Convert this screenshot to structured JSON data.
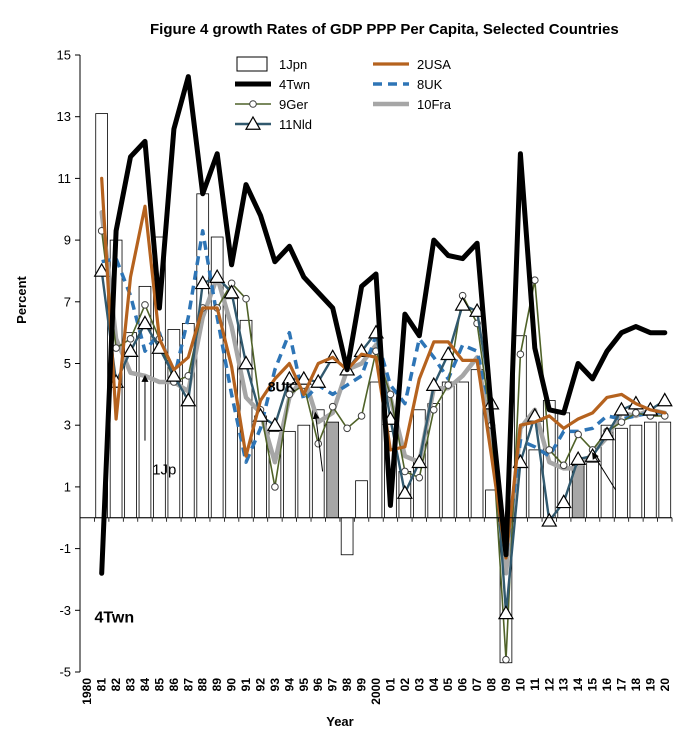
{
  "chart_data": {
    "type": "bar+line",
    "title": "Figure 4  growth Rates of GDP PPP Per Capita, Selected Countries",
    "xlabel": "Year",
    "ylabel": "Percent",
    "ylim": [
      -5,
      15
    ],
    "yticks": [
      "-5",
      "-3",
      "-1",
      "1",
      "3",
      "5",
      "7",
      "9",
      "11",
      "13",
      "15"
    ],
    "grid": false,
    "legend_position": "top-left",
    "categories": [
      "1980",
      "81",
      "82",
      "83",
      "84",
      "85",
      "86",
      "87",
      "88",
      "89",
      "90",
      "91",
      "92",
      "93",
      "94",
      "95",
      "96",
      "97",
      "98",
      "99",
      "2000",
      "01",
      "02",
      "03",
      "04",
      "05",
      "06",
      "07",
      "08",
      "09",
      "10",
      "11",
      "12",
      "13",
      "14",
      "15",
      "16",
      "17",
      "18",
      "19",
      "20"
    ],
    "bars": {
      "name": "1Jpn",
      "values": [
        null,
        13.1,
        9.0,
        6.0,
        7.5,
        9.1,
        6.1,
        6.3,
        10.5,
        9.1,
        7.1,
        6.4,
        3.3,
        2.8,
        2.8,
        3.0,
        3.5,
        3.1,
        -1.2,
        1.2,
        4.4,
        2.8,
        1.5,
        3.5,
        3.7,
        4.4,
        4.4,
        4.8,
        0.9,
        -4.7,
        5.9,
        2.2,
        3.8,
        3.4,
        1.7,
        1.8,
        3.0,
        2.9,
        3.0,
        3.1,
        3.1
      ],
      "highlighted": [
        "97",
        "14"
      ],
      "colors": {
        "fill": "#ffffff",
        "stroke": "#000000",
        "highlight": "#a6a6a6"
      }
    },
    "series": [
      {
        "name": "2USA",
        "color": "#b5621e",
        "values": [
          null,
          11.0,
          3.2,
          7.8,
          10.1,
          5.8,
          4.8,
          5.2,
          6.8,
          6.8,
          4.9,
          2.0,
          3.8,
          4.5,
          5.0,
          4.0,
          5.0,
          5.2,
          4.8,
          5.3,
          5.2,
          2.2,
          2.3,
          4.5,
          5.7,
          5.7,
          5.1,
          5.1,
          2.0,
          -1.3,
          3.0,
          3.1,
          3.3,
          2.9,
          3.2,
          3.4,
          3.9,
          4.0,
          3.7,
          3.5,
          3.4
        ]
      },
      {
        "name": "4Twn",
        "color": "#000000",
        "values": [
          null,
          -1.8,
          9.3,
          11.7,
          12.2,
          6.8,
          12.6,
          14.3,
          10.5,
          11.8,
          8.2,
          10.8,
          9.8,
          8.3,
          8.8,
          7.8,
          7.3,
          6.8,
          4.8,
          7.5,
          7.9,
          0.4,
          6.6,
          5.9,
          9.0,
          8.5,
          8.4,
          8.9,
          3.4,
          -1.2,
          11.8,
          5.5,
          3.5,
          3.4,
          5.0,
          4.5,
          5.4,
          6.0,
          6.2,
          6.0,
          6.0
        ]
      },
      {
        "name": "8UK",
        "color": "#2e75b6",
        "values": [
          null,
          8.3,
          8.4,
          7.2,
          5.4,
          6.0,
          4.5,
          6.5,
          9.3,
          6.5,
          4.0,
          1.8,
          2.9,
          4.8,
          6.0,
          3.8,
          4.3,
          4.0,
          4.3,
          4.6,
          5.9,
          4.3,
          3.7,
          5.8,
          5.2,
          4.5,
          5.6,
          5.4,
          3.4,
          -1.3,
          2.5,
          2.3,
          2.0,
          2.8,
          2.8,
          2.9,
          3.3,
          3.2,
          3.3,
          3.4,
          3.4
        ]
      },
      {
        "name": "9Ger",
        "color": "#4f6228",
        "values": [
          null,
          9.3,
          5.5,
          5.8,
          6.9,
          5.8,
          4.4,
          4.6,
          6.8,
          6.8,
          7.6,
          7.1,
          3.5,
          1.0,
          4.0,
          4.3,
          2.4,
          3.6,
          2.9,
          3.3,
          5.4,
          4.0,
          1.5,
          1.3,
          3.5,
          4.3,
          7.2,
          6.3,
          3.0,
          -4.6,
          5.3,
          7.7,
          2.2,
          1.7,
          2.7,
          2.2,
          2.8,
          3.1,
          3.4,
          3.3,
          3.3
        ]
      },
      {
        "name": "10Fra",
        "color": "#a6a6a6",
        "values": [
          null,
          9.9,
          5.8,
          4.7,
          4.6,
          4.4,
          4.4,
          4.1,
          6.5,
          7.8,
          6.2,
          3.9,
          3.4,
          1.8,
          3.9,
          4.6,
          3.1,
          3.4,
          4.8,
          5.0,
          5.6,
          3.9,
          2.0,
          1.8,
          4.2,
          4.2,
          4.6,
          5.2,
          2.6,
          -1.8,
          2.9,
          3.5,
          1.8,
          1.6,
          1.6,
          2.1,
          2.6,
          3.4,
          3.3,
          3.5,
          3.4
        ]
      },
      {
        "name": "11Nld",
        "color": "#31596e",
        "values": [
          null,
          8.0,
          4.4,
          5.4,
          6.3,
          5.5,
          4.6,
          3.8,
          7.6,
          7.8,
          7.3,
          5.0,
          3.3,
          3.0,
          4.5,
          4.5,
          4.4,
          5.2,
          4.8,
          5.4,
          6.0,
          3.2,
          0.8,
          1.8,
          4.3,
          5.3,
          6.9,
          6.7,
          3.7,
          -3.1,
          1.8,
          3.3,
          -0.1,
          0.5,
          1.9,
          2.0,
          2.7,
          3.5,
          3.7,
          3.5,
          3.8
        ]
      }
    ],
    "annotations": [
      {
        "text": "4Twn",
        "category": "81",
        "y": -3.4
      },
      {
        "text": "1Jp",
        "category": "85",
        "y": 1.4
      },
      {
        "text": "8UK",
        "category": "93",
        "y": 4.1
      }
    ]
  }
}
